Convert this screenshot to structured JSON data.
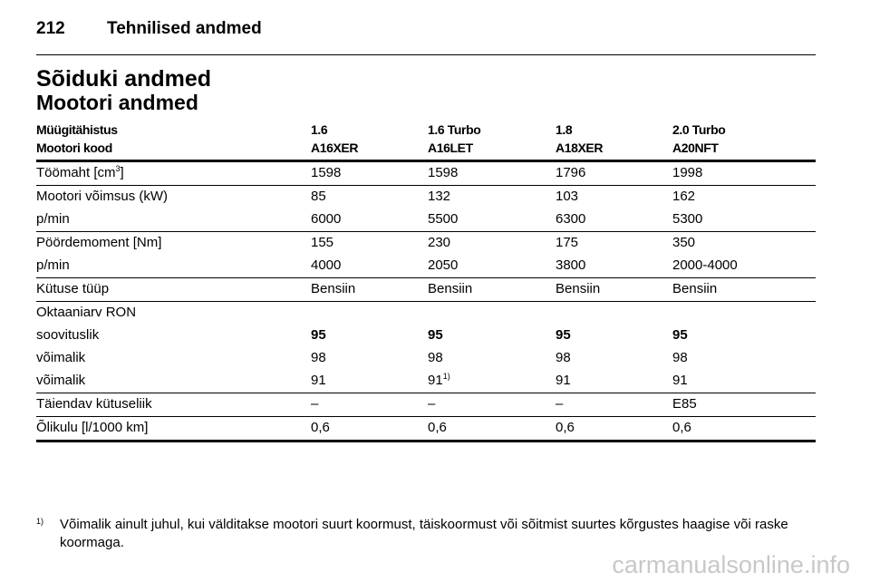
{
  "header": {
    "page_number": "212",
    "section": "Tehnilised andmed"
  },
  "title": "Sõiduki andmed",
  "subtitle": "Mootori andmed",
  "table": {
    "header_rows": [
      [
        "Müügitähistus",
        "1.6",
        "1.6 Turbo",
        "1.8",
        "2.0 Turbo"
      ],
      [
        "Mootori kood",
        "A16XER",
        "A16LET",
        "A18XER",
        "A20NFT"
      ]
    ],
    "groups": [
      [
        [
          {
            "text": "Töömaht [cm",
            "sup": "3",
            "after": "]"
          },
          "1598",
          "1598",
          "1796",
          "1998"
        ]
      ],
      [
        [
          "Mootori võimsus (kW)",
          "85",
          "132",
          "103",
          "162"
        ],
        [
          "p/min",
          "6000",
          "5500",
          "6300",
          "5300"
        ]
      ],
      [
        [
          "Pöördemoment [Nm]",
          "155",
          "230",
          "175",
          "350"
        ],
        [
          "p/min",
          "4000",
          "2050",
          "3800",
          "2000-4000"
        ]
      ],
      [
        [
          "Kütuse tüüp",
          "Bensiin",
          "Bensiin",
          "Bensiin",
          "Bensiin"
        ]
      ],
      [
        [
          "Oktaaniarv RON"
        ],
        [
          "soovituslik",
          {
            "text": "95",
            "bold": true
          },
          {
            "text": "95",
            "bold": true
          },
          {
            "text": "95",
            "bold": true
          },
          {
            "text": "95",
            "bold": true
          }
        ],
        [
          "võimalik",
          "98",
          "98",
          "98",
          "98"
        ],
        [
          "võimalik",
          "91",
          {
            "text": "91",
            "sup": "1)"
          },
          "91",
          "91"
        ]
      ],
      [
        [
          "Täiendav kütuseliik",
          "–",
          "–",
          "–",
          "E85"
        ]
      ],
      [
        [
          "Õlikulu [l/1000 km]",
          "0,6",
          "0,6",
          "0,6",
          "0,6"
        ]
      ]
    ]
  },
  "footnote": {
    "marker": "1)",
    "text": "Võimalik ainult juhul, kui välditakse mootori suurt koormust, täiskoormust või sõitmist suurtes kõrgustes haagise või raske koormaga."
  },
  "watermark": "carmanualsonline.info"
}
